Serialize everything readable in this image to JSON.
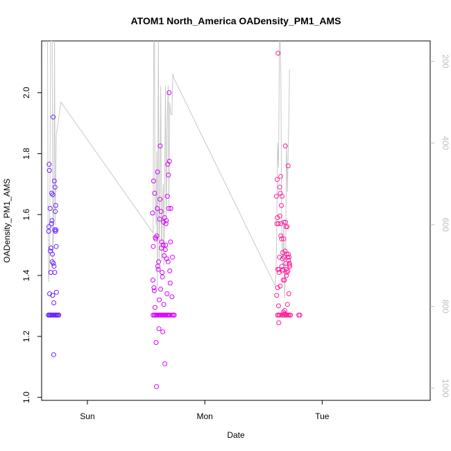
{
  "chart_data": {
    "type": "scatter",
    "title": "ATOM1 North_America OADensity_PM1_AMS",
    "xlabel": "Date",
    "ylabel": "OADensity_PM1_AMS",
    "xlim": [
      -0.39,
      2.92
    ],
    "ylim": [
      0.99,
      2.17
    ],
    "x_ticks": [
      {
        "label": "Sun",
        "value": 0
      },
      {
        "label": "Mon",
        "value": 1
      },
      {
        "label": "Tue",
        "value": 2
      }
    ],
    "y_ticks": [
      1.0,
      1.2,
      1.4,
      1.6,
      1.8,
      2.0
    ],
    "y2_ticks": [
      200,
      400,
      600,
      800,
      1000
    ],
    "y2lim": [
      1030,
      150
    ],
    "grid": false,
    "legend": "none",
    "colors": {
      "early": "#6a1fff",
      "mid": "#d400ff",
      "late": "#ff1f9a",
      "line": "#c8c8c8"
    },
    "series": [
      {
        "color": "#6a1fff",
        "points": [
          [
            -0.332,
            1.27
          ],
          [
            -0.324,
            1.27
          ],
          [
            -0.316,
            1.27
          ],
          [
            -0.308,
            1.27
          ],
          [
            -0.3,
            1.27
          ],
          [
            -0.292,
            1.27
          ],
          [
            -0.284,
            1.27
          ],
          [
            -0.276,
            1.27
          ],
          [
            -0.268,
            1.27
          ],
          [
            -0.26,
            1.27
          ],
          [
            -0.252,
            1.27
          ],
          [
            -0.244,
            1.27
          ],
          [
            -0.33,
            1.545
          ],
          [
            -0.328,
            1.56
          ],
          [
            -0.326,
            1.765
          ],
          [
            -0.324,
            1.745
          ],
          [
            -0.322,
            1.34
          ],
          [
            -0.318,
            1.62
          ],
          [
            -0.316,
            1.48
          ],
          [
            -0.312,
            1.41
          ],
          [
            -0.31,
            1.49
          ],
          [
            -0.306,
            1.57
          ],
          [
            -0.304,
            1.67
          ],
          [
            -0.302,
            1.58
          ],
          [
            -0.3,
            1.445
          ],
          [
            -0.298,
            1.47
          ],
          [
            -0.296,
            1.335
          ],
          [
            -0.294,
            1.665
          ],
          [
            -0.292,
            1.92
          ],
          [
            -0.29,
            1.44
          ],
          [
            -0.288,
            1.14
          ],
          [
            -0.286,
            1.31
          ],
          [
            -0.284,
            1.43
          ],
          [
            -0.282,
            1.71
          ],
          [
            -0.28,
            1.55
          ],
          [
            -0.278,
            1.41
          ],
          [
            -0.276,
            1.69
          ],
          [
            -0.274,
            1.61
          ],
          [
            -0.272,
            1.545
          ],
          [
            -0.27,
            1.63
          ],
          [
            -0.268,
            1.55
          ],
          [
            -0.266,
            1.495
          ],
          [
            -0.264,
            1.345
          ]
        ]
      },
      {
        "color": "#d400ff",
        "points": [
          [
            0.56,
            1.27
          ],
          [
            0.57,
            1.27
          ],
          [
            0.58,
            1.27
          ],
          [
            0.59,
            1.27
          ],
          [
            0.6,
            1.27
          ],
          [
            0.61,
            1.27
          ],
          [
            0.62,
            1.27
          ],
          [
            0.63,
            1.27
          ],
          [
            0.64,
            1.27
          ],
          [
            0.65,
            1.27
          ],
          [
            0.66,
            1.27
          ],
          [
            0.67,
            1.27
          ],
          [
            0.68,
            1.27
          ],
          [
            0.69,
            1.27
          ],
          [
            0.7,
            1.27
          ],
          [
            0.72,
            1.27
          ],
          [
            0.73,
            1.27
          ],
          [
            0.74,
            1.27
          ],
          [
            0.555,
            1.605
          ],
          [
            0.558,
            1.385
          ],
          [
            0.561,
            1.495
          ],
          [
            0.564,
            1.71
          ],
          [
            0.567,
            1.36
          ],
          [
            0.57,
            1.35
          ],
          [
            0.573,
            1.67
          ],
          [
            0.576,
            1.295
          ],
          [
            0.579,
            1.525
          ],
          [
            0.582,
            1.52
          ],
          [
            0.585,
            1.18
          ],
          [
            0.588,
            1.035
          ],
          [
            0.591,
            1.53
          ],
          [
            0.594,
            1.62
          ],
          [
            0.597,
            1.74
          ],
          [
            0.6,
            1.43
          ],
          [
            0.603,
            1.42
          ],
          [
            0.606,
            1.445
          ],
          [
            0.609,
            1.225
          ],
          [
            0.612,
            1.32
          ],
          [
            0.615,
            1.585
          ],
          [
            0.618,
            1.65
          ],
          [
            0.621,
            1.825
          ],
          [
            0.624,
            1.355
          ],
          [
            0.627,
            1.61
          ],
          [
            0.63,
            1.49
          ],
          [
            0.633,
            1.51
          ],
          [
            0.636,
            1.41
          ],
          [
            0.639,
            1.395
          ],
          [
            0.642,
            1.215
          ],
          [
            0.645,
            1.5
          ],
          [
            0.648,
            1.575
          ],
          [
            0.651,
            1.305
          ],
          [
            0.654,
            1.465
          ],
          [
            0.657,
            1.59
          ],
          [
            0.66,
            1.11
          ],
          [
            0.663,
            1.485
          ],
          [
            0.666,
            1.5
          ],
          [
            0.669,
            1.57
          ],
          [
            0.672,
            1.58
          ],
          [
            0.675,
            1.455
          ],
          [
            0.678,
            1.34
          ],
          [
            0.681,
            1.66
          ],
          [
            0.684,
            1.765
          ],
          [
            0.687,
            1.445
          ],
          [
            0.69,
            1.73
          ],
          [
            0.693,
            1.62
          ],
          [
            0.696,
            2.0
          ],
          [
            0.699,
            1.775
          ],
          [
            0.702,
            1.415
          ],
          [
            0.705,
            1.375
          ],
          [
            0.708,
            1.51
          ],
          [
            0.711,
            1.62
          ],
          [
            0.72,
            1.33
          ],
          [
            0.725,
            1.46
          ]
        ]
      },
      {
        "color": "#ff1f9a",
        "points": [
          [
            1.62,
            1.27
          ],
          [
            1.63,
            1.27
          ],
          [
            1.64,
            1.27
          ],
          [
            1.66,
            1.27
          ],
          [
            1.67,
            1.27
          ],
          [
            1.68,
            1.27
          ],
          [
            1.69,
            1.27
          ],
          [
            1.7,
            1.27
          ],
          [
            1.71,
            1.27
          ],
          [
            1.72,
            1.27
          ],
          [
            1.73,
            1.27
          ],
          [
            1.8,
            1.27
          ],
          [
            1.81,
            1.27
          ],
          [
            1.61,
            1.66
          ],
          [
            1.612,
            1.335
          ],
          [
            1.614,
            1.57
          ],
          [
            1.616,
            1.715
          ],
          [
            1.618,
            1.59
          ],
          [
            1.62,
            1.36
          ],
          [
            1.622,
            1.42
          ],
          [
            1.624,
            2.13
          ],
          [
            1.626,
            1.57
          ],
          [
            1.628,
            1.3
          ],
          [
            1.63,
            1.245
          ],
          [
            1.632,
            1.42
          ],
          [
            1.634,
            1.41
          ],
          [
            1.636,
            1.46
          ],
          [
            1.638,
            1.69
          ],
          [
            1.64,
            1.595
          ],
          [
            1.642,
            1.365
          ],
          [
            1.644,
            1.67
          ],
          [
            1.646,
            1.725
          ],
          [
            1.648,
            1.53
          ],
          [
            1.65,
            1.57
          ],
          [
            1.652,
            1.63
          ],
          [
            1.654,
            1.52
          ],
          [
            1.656,
            1.43
          ],
          [
            1.658,
            1.66
          ],
          [
            1.66,
            1.415
          ],
          [
            1.662,
            1.455
          ],
          [
            1.664,
            1.475
          ],
          [
            1.666,
            1.42
          ],
          [
            1.668,
            1.385
          ],
          [
            1.67,
            1.28
          ],
          [
            1.672,
            1.52
          ],
          [
            1.674,
            1.575
          ],
          [
            1.676,
            1.46
          ],
          [
            1.678,
            1.385
          ],
          [
            1.68,
            1.275
          ],
          [
            1.682,
            1.285
          ],
          [
            1.684,
            1.48
          ],
          [
            1.686,
            1.825
          ],
          [
            1.688,
            1.575
          ],
          [
            1.69,
            1.44
          ],
          [
            1.692,
            1.56
          ],
          [
            1.694,
            1.42
          ],
          [
            1.696,
            1.4
          ],
          [
            1.698,
            1.47
          ],
          [
            1.7,
            1.41
          ],
          [
            1.702,
            1.56
          ],
          [
            1.704,
            1.305
          ],
          [
            1.706,
            1.46
          ],
          [
            1.708,
            1.415
          ],
          [
            1.71,
            1.76
          ],
          [
            1.712,
            1.47
          ],
          [
            1.714,
            1.45
          ],
          [
            1.716,
            1.34
          ],
          [
            1.718,
            1.46
          ],
          [
            1.72,
            1.44
          ],
          [
            1.722,
            1.435
          ],
          [
            1.724,
            1.43
          ]
        ]
      }
    ],
    "line_series": {
      "axis": "right",
      "color": "#c8c8c8",
      "points": [
        [
          -0.34,
          150
        ],
        [
          -0.336,
          560
        ],
        [
          -0.33,
          740
        ],
        [
          -0.322,
          690
        ],
        [
          -0.314,
          150
        ],
        [
          -0.3,
          150
        ],
        [
          -0.295,
          690
        ],
        [
          -0.287,
          600
        ],
        [
          -0.28,
          150
        ],
        [
          -0.275,
          600
        ],
        [
          -0.265,
          380
        ],
        [
          -0.225,
          300
        ],
        [
          0.56,
          620
        ],
        [
          0.565,
          150
        ],
        [
          0.572,
          130
        ],
        [
          0.575,
          520
        ],
        [
          0.585,
          600
        ],
        [
          0.59,
          420
        ],
        [
          0.596,
          760
        ],
        [
          0.6,
          480
        ],
        [
          0.605,
          130
        ],
        [
          0.611,
          690
        ],
        [
          0.617,
          560
        ],
        [
          0.625,
          260
        ],
        [
          0.632,
          690
        ],
        [
          0.638,
          560
        ],
        [
          0.646,
          500
        ],
        [
          0.652,
          700
        ],
        [
          0.658,
          500
        ],
        [
          0.665,
          260
        ],
        [
          0.672,
          580
        ],
        [
          0.68,
          350
        ],
        [
          0.688,
          260
        ],
        [
          0.694,
          560
        ],
        [
          0.7,
          300
        ],
        [
          0.71,
          330
        ],
        [
          0.72,
          330
        ],
        [
          0.728,
          230
        ],
        [
          0.735,
          240
        ],
        [
          1.6,
          750
        ],
        [
          1.606,
          720
        ],
        [
          1.612,
          640
        ],
        [
          1.62,
          400
        ],
        [
          1.628,
          460
        ],
        [
          1.636,
          150
        ],
        [
          1.642,
          150
        ],
        [
          1.648,
          240
        ],
        [
          1.656,
          640
        ],
        [
          1.664,
          700
        ],
        [
          1.672,
          600
        ],
        [
          1.68,
          780
        ],
        [
          1.688,
          700
        ],
        [
          1.696,
          400
        ],
        [
          1.704,
          520
        ],
        [
          1.712,
          400
        ],
        [
          1.718,
          300
        ],
        [
          1.722,
          220
        ]
      ]
    }
  }
}
